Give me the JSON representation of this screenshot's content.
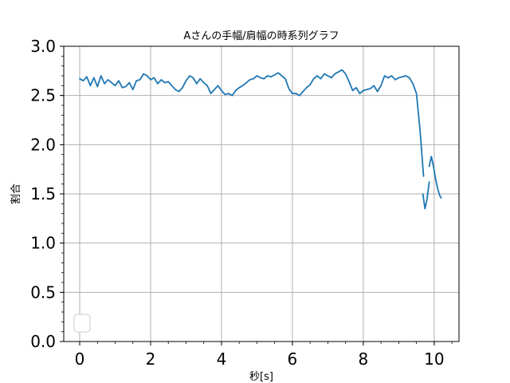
{
  "chart_data": {
    "type": "line",
    "title": "Aさんの手幅/肩幅の時系列グラフ",
    "xlabel": "秒[s]",
    "ylabel": "割合",
    "xlim": [
      -0.45,
      10.7
    ],
    "ylim": [
      0.0,
      3.0
    ],
    "x_ticks": [
      0,
      2,
      4,
      6,
      8,
      10
    ],
    "x_tick_labels": [
      "0",
      "2",
      "4",
      "6",
      "8",
      "10"
    ],
    "y_ticks": [
      0.0,
      0.5,
      1.0,
      1.5,
      2.0,
      2.5,
      3.0
    ],
    "y_tick_labels": [
      "0.0",
      "0.5",
      "1.0",
      "1.5",
      "2.0",
      "2.5",
      "3.0"
    ],
    "grid": true,
    "legend": {
      "placement": "lower-left",
      "entries": []
    },
    "line_color": "#1f77b4",
    "series": [
      {
        "segments": [
          {
            "x": [
              0.0,
              0.1,
              0.2,
              0.3,
              0.4,
              0.5,
              0.6,
              0.7,
              0.8,
              0.9,
              1.0,
              1.1,
              1.2,
              1.3,
              1.4,
              1.5,
              1.6,
              1.7,
              1.8,
              1.9,
              2.0,
              2.1,
              2.2,
              2.3,
              2.4,
              2.5,
              2.6,
              2.7,
              2.8,
              2.9,
              3.0,
              3.1,
              3.2,
              3.3,
              3.4,
              3.5,
              3.6,
              3.7,
              3.8,
              3.9,
              4.0,
              4.1,
              4.2,
              4.3,
              4.4,
              4.5,
              4.6,
              4.7,
              4.8,
              4.9,
              5.0,
              5.1,
              5.2,
              5.3,
              5.4,
              5.5,
              5.6,
              5.7,
              5.8,
              5.9,
              6.0,
              6.1,
              6.2,
              6.3,
              6.4,
              6.5,
              6.6,
              6.7,
              6.8,
              6.9,
              7.0,
              7.1,
              7.2,
              7.3,
              7.4,
              7.5,
              7.6,
              7.7,
              7.8,
              7.9,
              8.0,
              8.1,
              8.2,
              8.3,
              8.4,
              8.5,
              8.6,
              8.7,
              8.8,
              8.9,
              9.0,
              9.1,
              9.2,
              9.3,
              9.4,
              9.5,
              9.6,
              9.7
            ],
            "y": [
              2.67,
              2.65,
              2.69,
              2.6,
              2.68,
              2.59,
              2.7,
              2.62,
              2.66,
              2.63,
              2.6,
              2.65,
              2.58,
              2.59,
              2.63,
              2.56,
              2.65,
              2.66,
              2.72,
              2.7,
              2.66,
              2.68,
              2.62,
              2.66,
              2.63,
              2.64,
              2.6,
              2.56,
              2.54,
              2.58,
              2.65,
              2.7,
              2.68,
              2.62,
              2.67,
              2.63,
              2.6,
              2.52,
              2.56,
              2.6,
              2.55,
              2.51,
              2.52,
              2.5,
              2.55,
              2.58,
              2.6,
              2.63,
              2.66,
              2.67,
              2.7,
              2.68,
              2.67,
              2.7,
              2.69,
              2.71,
              2.73,
              2.7,
              2.67,
              2.57,
              2.52,
              2.52,
              2.5,
              2.54,
              2.58,
              2.61,
              2.67,
              2.7,
              2.67,
              2.72,
              2.7,
              2.68,
              2.72,
              2.74,
              2.76,
              2.72,
              2.64,
              2.55,
              2.58,
              2.52,
              2.55,
              2.56,
              2.57,
              2.6,
              2.54,
              2.6,
              2.7,
              2.68,
              2.7,
              2.66,
              2.68,
              2.69,
              2.7,
              2.68,
              2.62,
              2.52,
              2.15,
              1.68
            ]
          },
          {
            "x": [
              9.68,
              9.74,
              9.8,
              9.86
            ],
            "y": [
              1.5,
              1.35,
              1.45,
              1.62
            ]
          },
          {
            "x": [
              9.86,
              9.92,
              9.98,
              10.04,
              10.1,
              10.16,
              10.2
            ],
            "y": [
              1.78,
              1.88,
              1.78,
              1.65,
              1.55,
              1.48,
              1.46
            ]
          }
        ]
      }
    ]
  }
}
